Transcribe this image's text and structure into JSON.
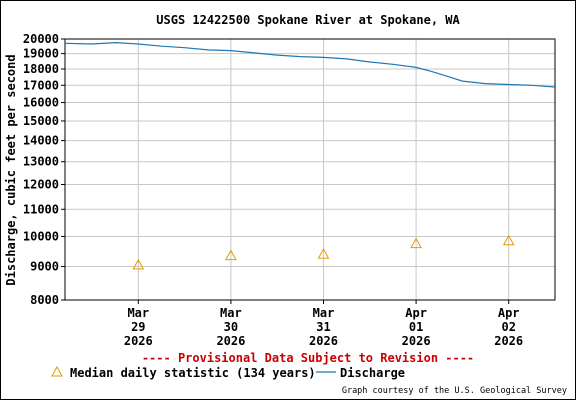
{
  "chart_data": {
    "type": "line",
    "title": "USGS 12422500 Spokane River at Spokane, WA",
    "ylabel": "Discharge, cubic feet per second",
    "y_scale": "log",
    "ylim": [
      8000,
      20000
    ],
    "y_ticks": [
      8000,
      9000,
      10000,
      11000,
      12000,
      13000,
      14000,
      15000,
      16000,
      17000,
      18000,
      19000,
      20000
    ],
    "y_tick_labels": [
      "8000",
      "9000",
      "10000",
      "11000",
      "12000",
      "13000",
      "14000",
      "15000",
      "16000",
      "17000",
      "18000",
      "19000",
      "20000"
    ],
    "x_range": [
      "2026-03-28 05:00",
      "2026-04-02 12:00"
    ],
    "x_ticks": [
      {
        "date": "2026-03-29",
        "label": [
          "Mar",
          "29",
          "2026"
        ]
      },
      {
        "date": "2026-03-30",
        "label": [
          "Mar",
          "30",
          "2026"
        ]
      },
      {
        "date": "2026-03-31",
        "label": [
          "Mar",
          "31",
          "2026"
        ]
      },
      {
        "date": "2026-04-01",
        "label": [
          "Apr",
          "01",
          "2026"
        ]
      },
      {
        "date": "2026-04-02",
        "label": [
          "Apr",
          "02",
          "2026"
        ]
      }
    ],
    "grid": true,
    "series": [
      {
        "name": "Discharge",
        "color": "#1f77b4",
        "points": [
          {
            "t": "2026-03-28 05:00",
            "v": 19700
          },
          {
            "t": "2026-03-28 12:00",
            "v": 19650
          },
          {
            "t": "2026-03-28 18:00",
            "v": 19750
          },
          {
            "t": "2026-03-29 00:00",
            "v": 19650
          },
          {
            "t": "2026-03-29 06:00",
            "v": 19500
          },
          {
            "t": "2026-03-29 12:00",
            "v": 19400
          },
          {
            "t": "2026-03-29 18:00",
            "v": 19250
          },
          {
            "t": "2026-03-30 00:00",
            "v": 19200
          },
          {
            "t": "2026-03-30 06:00",
            "v": 19050
          },
          {
            "t": "2026-03-30 12:00",
            "v": 18900
          },
          {
            "t": "2026-03-30 18:00",
            "v": 18800
          },
          {
            "t": "2026-03-31 00:00",
            "v": 18750
          },
          {
            "t": "2026-03-31 06:00",
            "v": 18650
          },
          {
            "t": "2026-03-31 12:00",
            "v": 18450
          },
          {
            "t": "2026-03-31 18:00",
            "v": 18300
          },
          {
            "t": "2026-04-01 00:00",
            "v": 18100
          },
          {
            "t": "2026-04-01 04:00",
            "v": 17850
          },
          {
            "t": "2026-04-01 08:00",
            "v": 17550
          },
          {
            "t": "2026-04-01 12:00",
            "v": 17250
          },
          {
            "t": "2026-04-01 18:00",
            "v": 17100
          },
          {
            "t": "2026-04-02 00:00",
            "v": 17050
          },
          {
            "t": "2026-04-02 06:00",
            "v": 17000
          },
          {
            "t": "2026-04-02 12:00",
            "v": 16900
          }
        ]
      },
      {
        "name": "Median daily statistic (134 years)",
        "color": "#e69a00",
        "marker": "triangle",
        "points": [
          {
            "t": "2026-03-29",
            "v": 9050
          },
          {
            "t": "2026-03-30",
            "v": 9350
          },
          {
            "t": "2026-03-31",
            "v": 9400
          },
          {
            "t": "2026-04-01",
            "v": 9750
          },
          {
            "t": "2026-04-02",
            "v": 9850
          }
        ]
      }
    ]
  },
  "notice": "---- Provisional Data Subject to Revision ----",
  "legend": {
    "median_label": "Median daily statistic (134 years)",
    "discharge_label": "Discharge"
  },
  "credit": "Graph courtesy of the U.S. Geological Survey",
  "colors": {
    "discharge": "#1f77b4",
    "median": "#e69a00",
    "notice": "#cc0000",
    "grid": "#c8c8c8"
  }
}
